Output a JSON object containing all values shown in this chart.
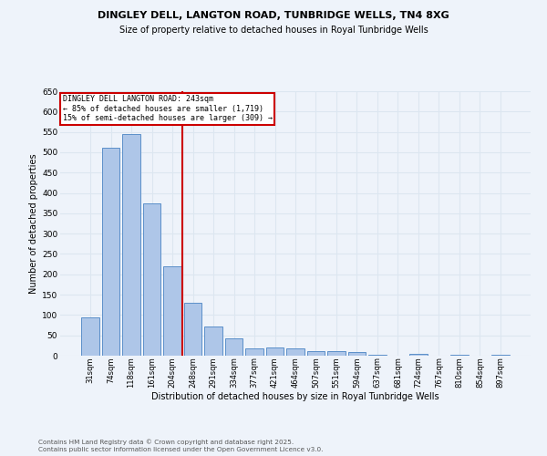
{
  "title1": "DINGLEY DELL, LANGTON ROAD, TUNBRIDGE WELLS, TN4 8XG",
  "title2": "Size of property relative to detached houses in Royal Tunbridge Wells",
  "xlabel": "Distribution of detached houses by size in Royal Tunbridge Wells",
  "ylabel": "Number of detached properties",
  "bar_labels": [
    "31sqm",
    "74sqm",
    "118sqm",
    "161sqm",
    "204sqm",
    "248sqm",
    "291sqm",
    "334sqm",
    "377sqm",
    "421sqm",
    "464sqm",
    "507sqm",
    "551sqm",
    "594sqm",
    "637sqm",
    "681sqm",
    "724sqm",
    "767sqm",
    "810sqm",
    "854sqm",
    "897sqm"
  ],
  "bar_values": [
    95,
    510,
    545,
    375,
    220,
    130,
    72,
    42,
    18,
    20,
    18,
    12,
    12,
    8,
    2,
    0,
    5,
    0,
    2,
    0,
    3
  ],
  "bar_color": "#aec6e8",
  "bar_edge_color": "#5b8fc9",
  "grid_color": "#dce6f0",
  "background_color": "#eef3fa",
  "annotation_text_line1": "DINGLEY DELL LANGTON ROAD: 243sqm",
  "annotation_text_line2": "← 85% of detached houses are smaller (1,719)",
  "annotation_text_line3": "15% of semi-detached houses are larger (309) →",
  "annotation_box_color": "#ffffff",
  "annotation_box_edge": "#cc0000",
  "vline_color": "#cc0000",
  "ylim": [
    0,
    650
  ],
  "yticks": [
    0,
    50,
    100,
    150,
    200,
    250,
    300,
    350,
    400,
    450,
    500,
    550,
    600,
    650
  ],
  "footer1": "Contains HM Land Registry data © Crown copyright and database right 2025.",
  "footer2": "Contains public sector information licensed under the Open Government Licence v3.0."
}
